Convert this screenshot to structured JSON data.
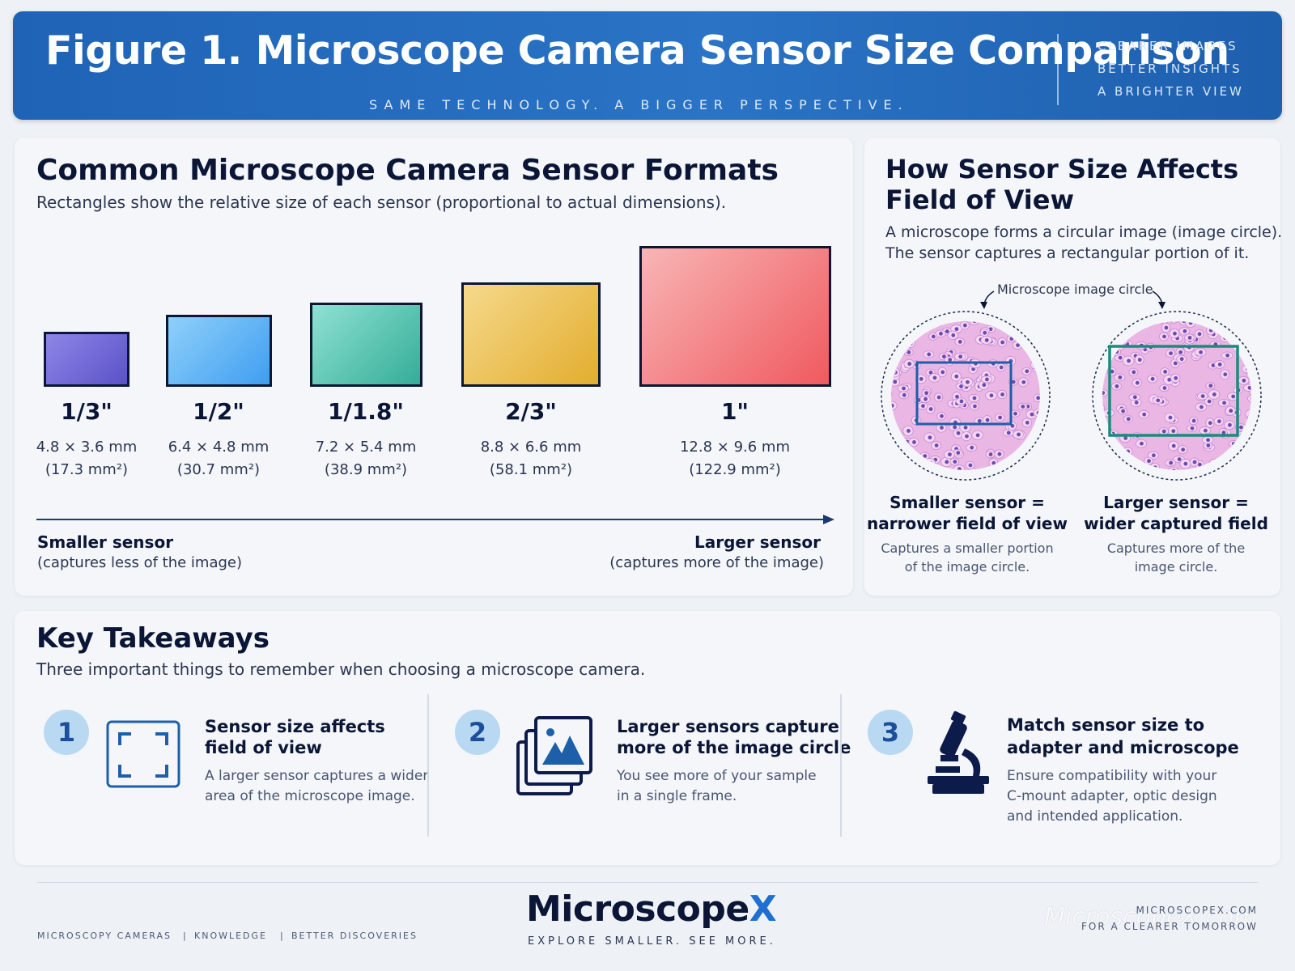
{
  "header": {
    "title": "Figure 1. Microscope Camera Sensor Size Comparison",
    "subtitle": "SAME TECHNOLOGY. A BIGGER PERSPECTIVE.",
    "taglines": [
      "CLEARER IMAGES",
      "BETTER INSIGHTS",
      "A BRIGHTER VIEW"
    ]
  },
  "formats": {
    "title": "Common Microscope Camera Sensor Formats",
    "description": "Rectangles show the relative size of each sensor (proportional to actual dimensions).",
    "sensors": [
      {
        "name": "1/3\"",
        "dims": "4.8 × 3.6 mm",
        "area": "(17.3 mm²)",
        "color_a": "#8f86e6",
        "color_b": "#5a52c8"
      },
      {
        "name": "1/2\"",
        "dims": "6.4 × 4.8 mm",
        "area": "(30.7 mm²)",
        "color_a": "#8fd0fb",
        "color_b": "#3f9ef0"
      },
      {
        "name": "1/1.8\"",
        "dims": "7.2 × 5.4 mm",
        "area": "(38.9 mm²)",
        "color_a": "#8fe1d2",
        "color_b": "#34ad98"
      },
      {
        "name": "2/3\"",
        "dims": "8.8 × 6.6 mm",
        "area": "(58.1 mm²)",
        "color_a": "#f5d98a",
        "color_b": "#e3ad2f"
      },
      {
        "name": "1\"",
        "dims": "12.8 × 9.6 mm",
        "area": "(122.9 mm²)",
        "color_a": "#f8b5b5",
        "color_b": "#ef5a5f"
      }
    ],
    "axis": {
      "left_title": "Smaller sensor",
      "left_note": "(captures less of the image)",
      "right_title": "Larger sensor",
      "right_note": "(captures more of the image)"
    }
  },
  "fov": {
    "title_line1": "How Sensor Size Affects",
    "title_line2": "Field of View",
    "desc_line1": "A microscope forms a  circular image (image circle).",
    "desc_line2": "The sensor captures a  rectangular portion of it.",
    "circle_label": "Microscope image circle",
    "small": {
      "title_line1": "Smaller sensor =",
      "title_line2": "narrower field of view",
      "desc_line1": "Captures a smaller portion",
      "desc_line2": "of the image circle.",
      "frame_color": "#1d5fa8"
    },
    "large": {
      "title_line1": "Larger sensor =",
      "title_line2": "wider captured field",
      "desc_line1": "Captures more of the",
      "desc_line2": "image circle.",
      "frame_color": "#1a8c7a"
    }
  },
  "takeaways": {
    "title": "Key Takeaways",
    "description": "Three important things to remember when choosing a microscope camera.",
    "items": [
      {
        "num": "1",
        "icon": "frame-corners-icon",
        "title_line1": "Sensor size affects",
        "title_line2": "field of view",
        "desc_line1": "A larger sensor captures a wider",
        "desc_line2": "area of the microscope image.",
        "desc_line3": ""
      },
      {
        "num": "2",
        "icon": "stacked-images-icon",
        "title_line1": "Larger sensors capture",
        "title_line2": "more of the image circle",
        "desc_line1": "You see more of your sample",
        "desc_line2": "in a single frame.",
        "desc_line3": ""
      },
      {
        "num": "3",
        "icon": "microscope-icon",
        "title_line1": "Match sensor size to",
        "title_line2": "adapter and microscope",
        "desc_line1": "Ensure compatibility with your",
        "desc_line2": "C-mount adapter, optic design",
        "desc_line3": "and intended application."
      }
    ]
  },
  "footer": {
    "nav": [
      "MICROSCOPY CAMERAS",
      "KNOWLEDGE",
      "BETTER DISCOVERIES"
    ],
    "brand_main": "Microscope",
    "brand_x": "X",
    "brand_tagline": "EXPLORE SMALLER. SEE MORE.",
    "site": "MICROSCOPEX.COM",
    "slogan": "FOR A CLEARER TOMORROW",
    "watermark": "MicroscopeX.com"
  },
  "colors": {
    "header_blue": "#1f63b6",
    "navy": "#0b1636",
    "accent_blue": "#1f6fd1",
    "number_badge": "#b9d9f3"
  }
}
